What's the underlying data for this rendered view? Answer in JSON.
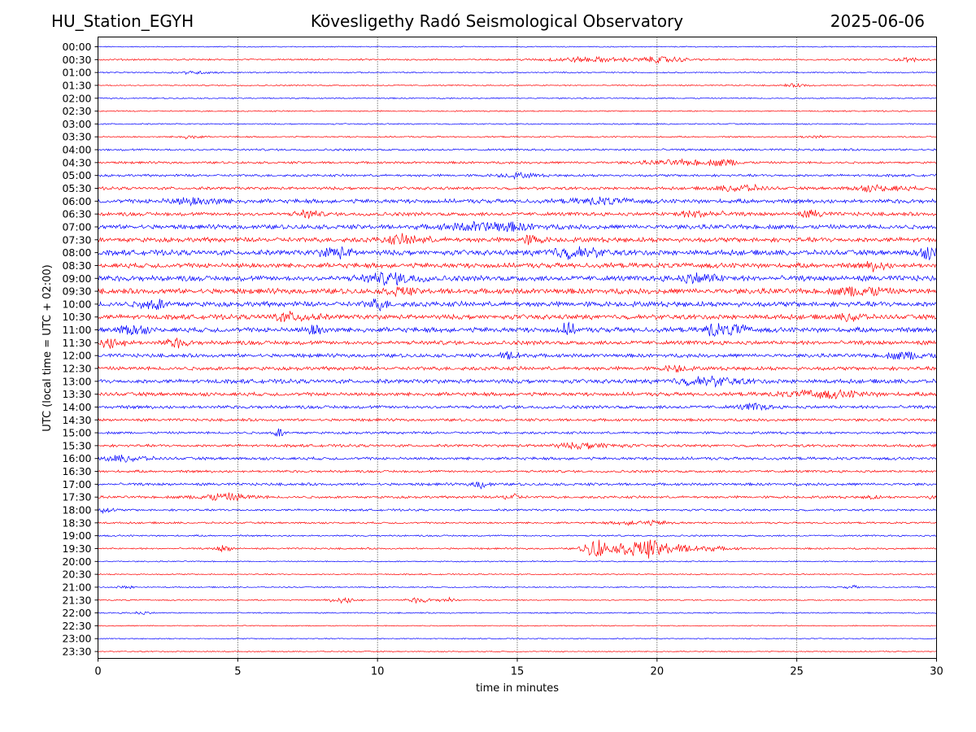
{
  "header": {
    "station": "HU_Station_EGYH",
    "title": "Kövesligethy Radó Seismological Observatory",
    "date": "2025-06-06"
  },
  "chart_data": {
    "type": "line",
    "title": "Kövesligethy Radó Seismological Observatory",
    "xlabel": "time in minutes",
    "ylabel": "UTC (local time = UTC + 02:00)",
    "xlim": [
      0,
      30
    ],
    "xticks": [
      "0",
      "5",
      "10",
      "15",
      "20",
      "25",
      "30"
    ],
    "grid": "vertical dotted at x ticks",
    "colors": {
      "even_rows": "#0000ff",
      "odd_rows": "#ff0000",
      "grid": "#000000"
    },
    "rows": [
      {
        "label": "00:00",
        "amplitude": 0.5,
        "bursts": []
      },
      {
        "label": "00:30",
        "amplitude": 0.8,
        "bursts": [
          {
            "t": 17.5,
            "a": 2.2,
            "w": 1.5
          },
          {
            "t": 20.2,
            "a": 2.6,
            "w": 0.9
          },
          {
            "t": 29.0,
            "a": 1.6,
            "w": 0.5
          }
        ]
      },
      {
        "label": "01:00",
        "amplitude": 0.6,
        "bursts": [
          {
            "t": 3.5,
            "a": 1.2,
            "w": 0.8
          }
        ]
      },
      {
        "label": "01:30",
        "amplitude": 0.6,
        "bursts": [
          {
            "t": 25.0,
            "a": 1.3,
            "w": 0.5
          }
        ]
      },
      {
        "label": "02:00",
        "amplitude": 0.6,
        "bursts": []
      },
      {
        "label": "02:30",
        "amplitude": 0.6,
        "bursts": []
      },
      {
        "label": "03:00",
        "amplitude": 0.6,
        "bursts": []
      },
      {
        "label": "03:30",
        "amplitude": 0.7,
        "bursts": [
          {
            "t": 3.3,
            "a": 1.6,
            "w": 0.4
          },
          {
            "t": 25.6,
            "a": 1.3,
            "w": 0.4
          }
        ]
      },
      {
        "label": "04:00",
        "amplitude": 1.0,
        "bursts": []
      },
      {
        "label": "04:30",
        "amplitude": 1.1,
        "bursts": [
          {
            "t": 21.0,
            "a": 2.2,
            "w": 1.5
          },
          {
            "t": 22.5,
            "a": 2.4,
            "w": 0.5
          }
        ]
      },
      {
        "label": "05:00",
        "amplitude": 1.2,
        "bursts": [
          {
            "t": 15.0,
            "a": 2.0,
            "w": 0.7
          }
        ]
      },
      {
        "label": "05:30",
        "amplitude": 1.4,
        "bursts": [
          {
            "t": 23.0,
            "a": 3.0,
            "w": 0.8
          },
          {
            "t": 28.0,
            "a": 2.6,
            "w": 1.0
          }
        ]
      },
      {
        "label": "06:00",
        "amplitude": 2.0,
        "bursts": [
          {
            "t": 3.5,
            "a": 3.0,
            "w": 1.0
          },
          {
            "t": 18.0,
            "a": 2.5,
            "w": 1.0
          }
        ]
      },
      {
        "label": "06:30",
        "amplitude": 1.8,
        "bursts": [
          {
            "t": 7.5,
            "a": 3.4,
            "w": 0.4
          },
          {
            "t": 21.5,
            "a": 3.0,
            "w": 0.8
          },
          {
            "t": 25.6,
            "a": 3.0,
            "w": 0.4
          }
        ]
      },
      {
        "label": "07:00",
        "amplitude": 2.2,
        "bursts": [
          {
            "t": 14.0,
            "a": 4.0,
            "w": 1.5
          }
        ]
      },
      {
        "label": "07:30",
        "amplitude": 2.3,
        "bursts": [
          {
            "t": 11.0,
            "a": 3.6,
            "w": 0.8
          },
          {
            "t": 15.5,
            "a": 3.4,
            "w": 0.4
          }
        ]
      },
      {
        "label": "08:00",
        "amplitude": 2.5,
        "bursts": [
          {
            "t": 8.5,
            "a": 5.0,
            "w": 0.5
          },
          {
            "t": 17.0,
            "a": 4.5,
            "w": 1.0
          },
          {
            "t": 29.8,
            "a": 4.5,
            "w": 0.5
          }
        ]
      },
      {
        "label": "08:30",
        "amplitude": 2.4,
        "bursts": [
          {
            "t": 27.8,
            "a": 3.6,
            "w": 0.4
          }
        ]
      },
      {
        "label": "09:00",
        "amplitude": 2.6,
        "bursts": [
          {
            "t": 10.5,
            "a": 4.5,
            "w": 1.0
          },
          {
            "t": 21.5,
            "a": 4.0,
            "w": 0.8
          }
        ]
      },
      {
        "label": "09:30",
        "amplitude": 2.6,
        "bursts": [
          {
            "t": 10.8,
            "a": 4.0,
            "w": 0.4
          },
          {
            "t": 27.3,
            "a": 4.6,
            "w": 0.8
          }
        ]
      },
      {
        "label": "10:00",
        "amplitude": 2.5,
        "bursts": [
          {
            "t": 2.0,
            "a": 4.5,
            "w": 0.5
          },
          {
            "t": 10.0,
            "a": 4.0,
            "w": 0.4
          }
        ]
      },
      {
        "label": "10:30",
        "amplitude": 2.3,
        "bursts": [
          {
            "t": 7.0,
            "a": 3.6,
            "w": 0.8
          },
          {
            "t": 27.0,
            "a": 3.6,
            "w": 0.4
          }
        ]
      },
      {
        "label": "11:00",
        "amplitude": 2.4,
        "bursts": [
          {
            "t": 1.2,
            "a": 4.5,
            "w": 0.5
          },
          {
            "t": 7.8,
            "a": 5.0,
            "w": 0.3
          },
          {
            "t": 16.8,
            "a": 5.0,
            "w": 0.3
          },
          {
            "t": 22.0,
            "a": 6.0,
            "w": 0.3
          },
          {
            "t": 22.8,
            "a": 5.0,
            "w": 0.4
          }
        ]
      },
      {
        "label": "11:30",
        "amplitude": 2.0,
        "bursts": [
          {
            "t": 0.5,
            "a": 4.5,
            "w": 0.5
          },
          {
            "t": 2.8,
            "a": 3.6,
            "w": 0.4
          }
        ]
      },
      {
        "label": "12:00",
        "amplitude": 1.8,
        "bursts": [
          {
            "t": 14.8,
            "a": 3.4,
            "w": 0.4
          },
          {
            "t": 29.0,
            "a": 3.4,
            "w": 0.8
          }
        ]
      },
      {
        "label": "12:30",
        "amplitude": 1.8,
        "bursts": [
          {
            "t": 20.7,
            "a": 3.0,
            "w": 0.4
          }
        ]
      },
      {
        "label": "13:00",
        "amplitude": 2.0,
        "bursts": [
          {
            "t": 21.8,
            "a": 3.6,
            "w": 1.2
          }
        ]
      },
      {
        "label": "13:30",
        "amplitude": 1.8,
        "bursts": [
          {
            "t": 26.0,
            "a": 3.0,
            "w": 1.5
          }
        ]
      },
      {
        "label": "14:00",
        "amplitude": 1.6,
        "bursts": [
          {
            "t": 23.5,
            "a": 3.0,
            "w": 0.5
          }
        ]
      },
      {
        "label": "14:30",
        "amplitude": 1.3,
        "bursts": []
      },
      {
        "label": "15:00",
        "amplitude": 1.2,
        "bursts": [
          {
            "t": 6.5,
            "a": 4.0,
            "w": 0.2
          }
        ]
      },
      {
        "label": "15:30",
        "amplitude": 1.3,
        "bursts": [
          {
            "t": 17.5,
            "a": 2.4,
            "w": 1.2
          }
        ]
      },
      {
        "label": "16:00",
        "amplitude": 1.4,
        "bursts": [
          {
            "t": 1.0,
            "a": 2.5,
            "w": 0.8
          }
        ]
      },
      {
        "label": "16:30",
        "amplitude": 1.2,
        "bursts": []
      },
      {
        "label": "17:00",
        "amplitude": 1.3,
        "bursts": [
          {
            "t": 13.7,
            "a": 3.6,
            "w": 0.3
          }
        ]
      },
      {
        "label": "17:30",
        "amplitude": 1.2,
        "bursts": [
          {
            "t": 4.5,
            "a": 3.4,
            "w": 1.0
          },
          {
            "t": 14.8,
            "a": 3.4,
            "w": 0.3
          },
          {
            "t": 27.7,
            "a": 2.4,
            "w": 0.2
          },
          {
            "t": 29.9,
            "a": 2.4,
            "w": 0.2
          }
        ]
      },
      {
        "label": "18:00",
        "amplitude": 1.0,
        "bursts": [
          {
            "t": 0.3,
            "a": 2.4,
            "w": 0.3
          }
        ]
      },
      {
        "label": "18:30",
        "amplitude": 0.9,
        "bursts": [
          {
            "t": 19.5,
            "a": 2.0,
            "w": 1.0
          }
        ]
      },
      {
        "label": "19:00",
        "amplitude": 0.8,
        "bursts": []
      },
      {
        "label": "19:30",
        "amplitude": 0.8,
        "bursts": [
          {
            "t": 4.5,
            "a": 3.0,
            "w": 0.3
          },
          {
            "t": 17.8,
            "a": 10.0,
            "w": 0.4
          },
          {
            "t": 19.4,
            "a": 8.0,
            "w": 0.9
          },
          {
            "t": 21.0,
            "a": 3.0,
            "w": 1.5
          }
        ]
      },
      {
        "label": "20:00",
        "amplitude": 0.6,
        "bursts": []
      },
      {
        "label": "20:30",
        "amplitude": 0.6,
        "bursts": []
      },
      {
        "label": "21:00",
        "amplitude": 0.6,
        "bursts": [
          {
            "t": 1.0,
            "a": 1.3,
            "w": 0.3
          },
          {
            "t": 27.0,
            "a": 1.3,
            "w": 0.3
          }
        ]
      },
      {
        "label": "21:30",
        "amplitude": 0.6,
        "bursts": [
          {
            "t": 8.8,
            "a": 2.6,
            "w": 0.5
          },
          {
            "t": 11.5,
            "a": 2.4,
            "w": 0.4
          },
          {
            "t": 12.5,
            "a": 2.0,
            "w": 0.3
          }
        ]
      },
      {
        "label": "22:00",
        "amplitude": 0.6,
        "bursts": [
          {
            "t": 1.5,
            "a": 1.3,
            "w": 0.4
          }
        ]
      },
      {
        "label": "22:30",
        "amplitude": 0.5,
        "bursts": []
      },
      {
        "label": "23:00",
        "amplitude": 0.5,
        "bursts": []
      },
      {
        "label": "23:30",
        "amplitude": 0.5,
        "bursts": []
      }
    ]
  }
}
